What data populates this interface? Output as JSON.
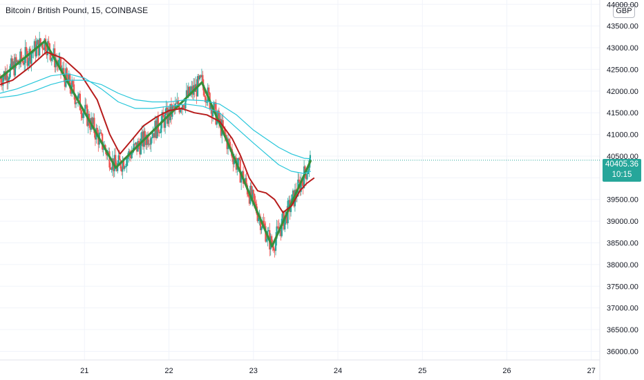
{
  "header": {
    "title": "Bitcoin / British Pound, 15, COINBASE",
    "currency_label": "GBP"
  },
  "price_tag": {
    "price": "40405.36",
    "countdown": "10:15"
  },
  "colors": {
    "up": "#26a69a",
    "down": "#ef5350",
    "pattern": "#388e3c",
    "ma_fast": "#b71c1c",
    "ma_slow": "#26c6da",
    "grid": "#f0f3fa",
    "axis_text": "#131722"
  },
  "chart_data": {
    "type": "line",
    "title": "Bitcoin / British Pound, 15, COINBASE",
    "xlabel": "",
    "ylabel": "",
    "x_ticks": [
      "21",
      "22",
      "23",
      "24",
      "25",
      "26",
      "27"
    ],
    "y_ticks": [
      "36000.00",
      "36500.00",
      "37000.00",
      "37500.00",
      "38000.00",
      "38500.00",
      "39000.00",
      "39500.00",
      "40000.00",
      "40500.00",
      "41000.00",
      "41500.00",
      "42000.00",
      "42500.00",
      "43000.00",
      "43500.00",
      "44000.00"
    ],
    "ylim": [
      35800,
      44100
    ],
    "xlim": [
      20.0,
      27.1
    ],
    "grid": true,
    "last_price": 40405.36,
    "series": [
      {
        "kind": "pattern",
        "points": [
          [
            20.0,
            42300
          ],
          [
            20.53,
            43150
          ],
          [
            21.37,
            40230
          ],
          [
            22.39,
            42200
          ],
          [
            23.22,
            38420
          ],
          [
            23.68,
            40405
          ]
        ]
      },
      {
        "kind": "ma_fast",
        "points": [
          [
            20.0,
            42150
          ],
          [
            20.15,
            42250
          ],
          [
            20.35,
            42550
          ],
          [
            20.55,
            42900
          ],
          [
            20.75,
            42750
          ],
          [
            20.95,
            42400
          ],
          [
            21.15,
            41800
          ],
          [
            21.3,
            41000
          ],
          [
            21.42,
            40550
          ],
          [
            21.55,
            40850
          ],
          [
            21.7,
            41200
          ],
          [
            21.85,
            41400
          ],
          [
            22.0,
            41550
          ],
          [
            22.15,
            41600
          ],
          [
            22.3,
            41500
          ],
          [
            22.45,
            41450
          ],
          [
            22.6,
            41300
          ],
          [
            22.75,
            40900
          ],
          [
            22.85,
            40500
          ],
          [
            22.95,
            40000
          ],
          [
            23.05,
            39700
          ],
          [
            23.15,
            39650
          ],
          [
            23.25,
            39500
          ],
          [
            23.35,
            39200
          ],
          [
            23.45,
            39350
          ],
          [
            23.55,
            39700
          ],
          [
            23.63,
            39870
          ],
          [
            23.72,
            40000
          ]
        ]
      },
      {
        "kind": "ma_slow",
        "points": [
          [
            20.0,
            41950
          ],
          [
            20.2,
            42050
          ],
          [
            20.4,
            42200
          ],
          [
            20.6,
            42350
          ],
          [
            20.8,
            42400
          ],
          [
            21.0,
            42300
          ],
          [
            21.2,
            42050
          ],
          [
            21.4,
            41750
          ],
          [
            21.6,
            41600
          ],
          [
            21.8,
            41600
          ],
          [
            22.0,
            41650
          ],
          [
            22.2,
            41700
          ],
          [
            22.4,
            41650
          ],
          [
            22.6,
            41500
          ],
          [
            22.8,
            41150
          ],
          [
            23.0,
            40800
          ],
          [
            23.15,
            40550
          ],
          [
            23.3,
            40300
          ],
          [
            23.45,
            40150
          ],
          [
            23.6,
            40100
          ],
          [
            23.68,
            40150
          ]
        ]
      },
      {
        "kind": "ma_slow",
        "points": [
          [
            20.0,
            41850
          ],
          [
            20.2,
            41900
          ],
          [
            20.4,
            42000
          ],
          [
            20.6,
            42150
          ],
          [
            20.8,
            42250
          ],
          [
            21.0,
            42250
          ],
          [
            21.2,
            42150
          ],
          [
            21.4,
            41950
          ],
          [
            21.6,
            41800
          ],
          [
            21.8,
            41750
          ],
          [
            22.0,
            41750
          ],
          [
            22.2,
            41800
          ],
          [
            22.4,
            41780
          ],
          [
            22.6,
            41700
          ],
          [
            22.8,
            41450
          ],
          [
            23.0,
            41100
          ],
          [
            23.15,
            40900
          ],
          [
            23.3,
            40700
          ],
          [
            23.45,
            40550
          ],
          [
            23.6,
            40450
          ],
          [
            23.68,
            40440
          ]
        ]
      }
    ]
  }
}
